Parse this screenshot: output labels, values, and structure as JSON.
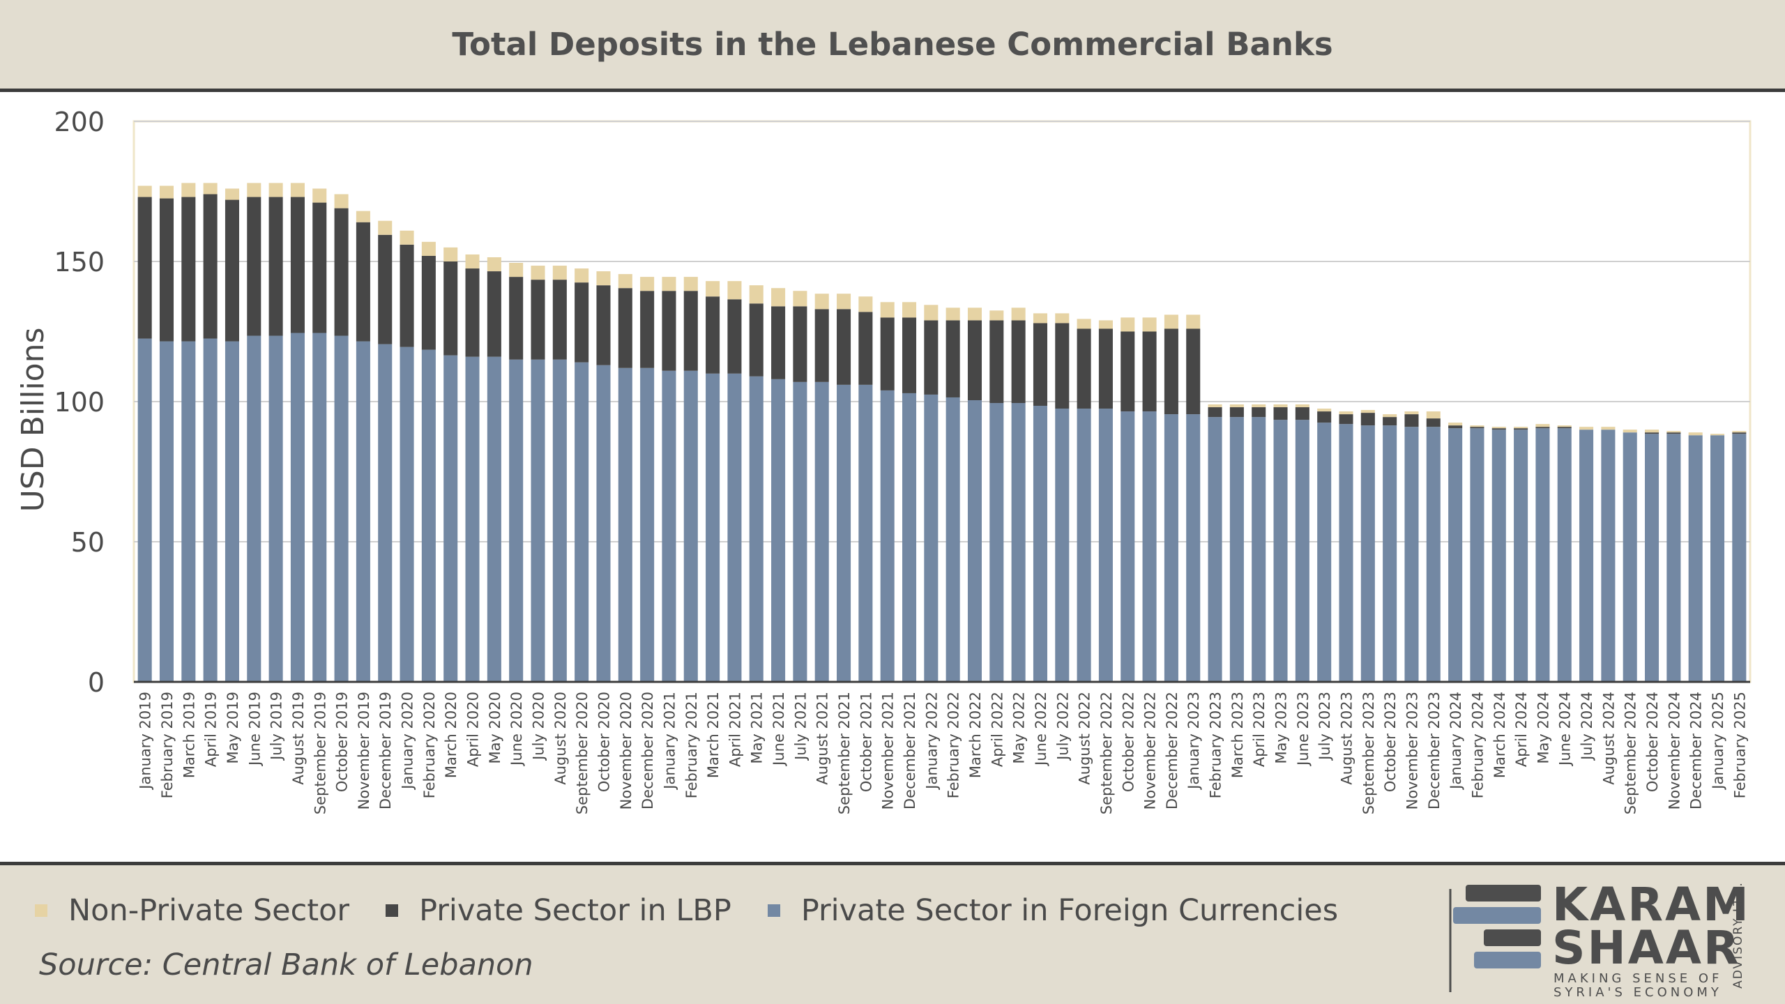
{
  "header": {
    "title": "Total Deposits in the Lebanese Commercial Banks"
  },
  "legend": {
    "items": [
      {
        "label": "Non-Private Sector",
        "color": "#e6d3a4"
      },
      {
        "label": "Private Sector in LBP",
        "color": "#474747"
      },
      {
        "label": "Private Sector in Foreign Currencies",
        "color": "#7388a3"
      }
    ]
  },
  "footer": {
    "source": "Source: Central Bank of Lebanon"
  },
  "logo": {
    "line1": "KARAM",
    "line2": "SHAAR",
    "tagline1": "MAKING SENSE OF",
    "tagline2": "SYRIA'S ECONOMY",
    "vertical": "ADVISORY LTD."
  },
  "chart_data": {
    "type": "bar",
    "stacked": true,
    "title": "Total Deposits in the Lebanese Commercial Banks",
    "xlabel": "",
    "ylabel": "USD Billions",
    "ylim": [
      0,
      200
    ],
    "yticks": [
      0,
      50,
      100,
      150,
      200
    ],
    "grid": true,
    "legend_position": "bottom-left",
    "categories": [
      "January 2019",
      "February 2019",
      "March 2019",
      "April 2019",
      "May 2019",
      "June 2019",
      "July 2019",
      "August 2019",
      "September 2019",
      "October 2019",
      "November 2019",
      "December 2019",
      "January 2020",
      "February 2020",
      "March 2020",
      "April 2020",
      "May 2020",
      "June 2020",
      "July 2020",
      "August 2020",
      "September 2020",
      "October 2020",
      "November 2020",
      "December 2020",
      "January 2021",
      "February 2021",
      "March 2021",
      "April 2021",
      "May 2021",
      "June 2021",
      "July 2021",
      "August 2021",
      "September 2021",
      "October 2021",
      "November 2021",
      "December 2021",
      "January 2022",
      "February 2022",
      "March 2022",
      "April 2022",
      "May 2022",
      "June 2022",
      "July 2022",
      "August 2022",
      "September 2022",
      "October 2022",
      "November 2022",
      "December 2022",
      "January 2023",
      "February 2023",
      "March 2023",
      "April 2023",
      "May 2023",
      "June 2023",
      "July 2023",
      "August 2023",
      "September 2023",
      "October 2023",
      "November 2023",
      "December 2023",
      "January 2024",
      "February 2024",
      "March 2024",
      "April 2024",
      "May 2024",
      "June 2024",
      "July 2024",
      "August 2024",
      "September 2024",
      "October 2024",
      "November 2024",
      "December 2024",
      "January 2025",
      "February 2025"
    ],
    "series": [
      {
        "name": "Private Sector in Foreign Currencies",
        "color": "#7388a3",
        "values": [
          122.5,
          121.5,
          121.5,
          122.5,
          121.5,
          123.5,
          123.5,
          124.5,
          124.5,
          123.5,
          121.5,
          120.5,
          119.5,
          118.5,
          116.5,
          116.0,
          116.0,
          115.0,
          115.0,
          115.0,
          114.0,
          113.0,
          112.0,
          112.0,
          111.0,
          111.0,
          110.0,
          110.0,
          109.0,
          108.0,
          107.0,
          107.0,
          106.0,
          106.0,
          104.0,
          103.0,
          102.5,
          101.5,
          100.5,
          99.5,
          99.5,
          98.5,
          97.5,
          97.5,
          97.5,
          96.5,
          96.5,
          95.5,
          95.5,
          94.5,
          94.5,
          94.5,
          93.5,
          93.5,
          92.5,
          92.0,
          91.5,
          91.5,
          91.0,
          91.0,
          90.5,
          90.5,
          90.0,
          90.0,
          90.5,
          90.5,
          90.0,
          90.0,
          89.0,
          88.5,
          88.5,
          88.0,
          88.0,
          88.5
        ]
      },
      {
        "name": "Private Sector in LBP",
        "color": "#474747",
        "values": [
          50.5,
          51.0,
          51.5,
          51.5,
          50.5,
          49.5,
          49.5,
          48.5,
          46.5,
          45.5,
          42.5,
          39.0,
          36.5,
          33.5,
          33.5,
          31.5,
          30.5,
          29.5,
          28.5,
          28.5,
          28.5,
          28.5,
          28.5,
          27.5,
          28.5,
          28.5,
          27.5,
          26.5,
          26.0,
          26.0,
          27.0,
          26.0,
          27.0,
          26.0,
          26.0,
          27.0,
          26.5,
          27.5,
          28.5,
          29.5,
          29.5,
          29.5,
          30.5,
          28.5,
          28.5,
          28.5,
          28.5,
          30.5,
          30.5,
          3.5,
          3.5,
          3.5,
          4.5,
          4.5,
          4.0,
          3.5,
          4.5,
          3.0,
          4.5,
          3.0,
          1.0,
          0.5,
          0.5,
          0.5,
          0.5,
          0.5,
          0.0,
          0.0,
          0.0,
          0.5,
          0.5,
          0.0,
          0.0,
          0.5
        ]
      },
      {
        "name": "Non-Private Sector",
        "color": "#e6d3a4",
        "values": [
          4.0,
          4.5,
          5.0,
          4.0,
          4.0,
          5.0,
          5.0,
          5.0,
          5.0,
          5.0,
          4.0,
          5.0,
          5.0,
          5.0,
          5.0,
          5.0,
          5.0,
          5.0,
          5.0,
          5.0,
          5.0,
          5.0,
          5.0,
          5.0,
          5.0,
          5.0,
          5.5,
          6.5,
          6.5,
          6.5,
          5.5,
          5.5,
          5.5,
          5.5,
          5.5,
          5.5,
          5.5,
          4.5,
          4.5,
          3.5,
          4.5,
          3.5,
          3.5,
          3.5,
          3.0,
          5.0,
          5.0,
          5.0,
          5.0,
          1.0,
          1.0,
          1.0,
          1.0,
          1.0,
          1.0,
          1.0,
          1.0,
          1.0,
          1.0,
          2.5,
          1.0,
          0.5,
          0.5,
          0.5,
          1.0,
          0.5,
          1.0,
          1.0,
          1.0,
          1.0,
          0.5,
          1.0,
          0.5,
          0.5
        ]
      }
    ]
  }
}
